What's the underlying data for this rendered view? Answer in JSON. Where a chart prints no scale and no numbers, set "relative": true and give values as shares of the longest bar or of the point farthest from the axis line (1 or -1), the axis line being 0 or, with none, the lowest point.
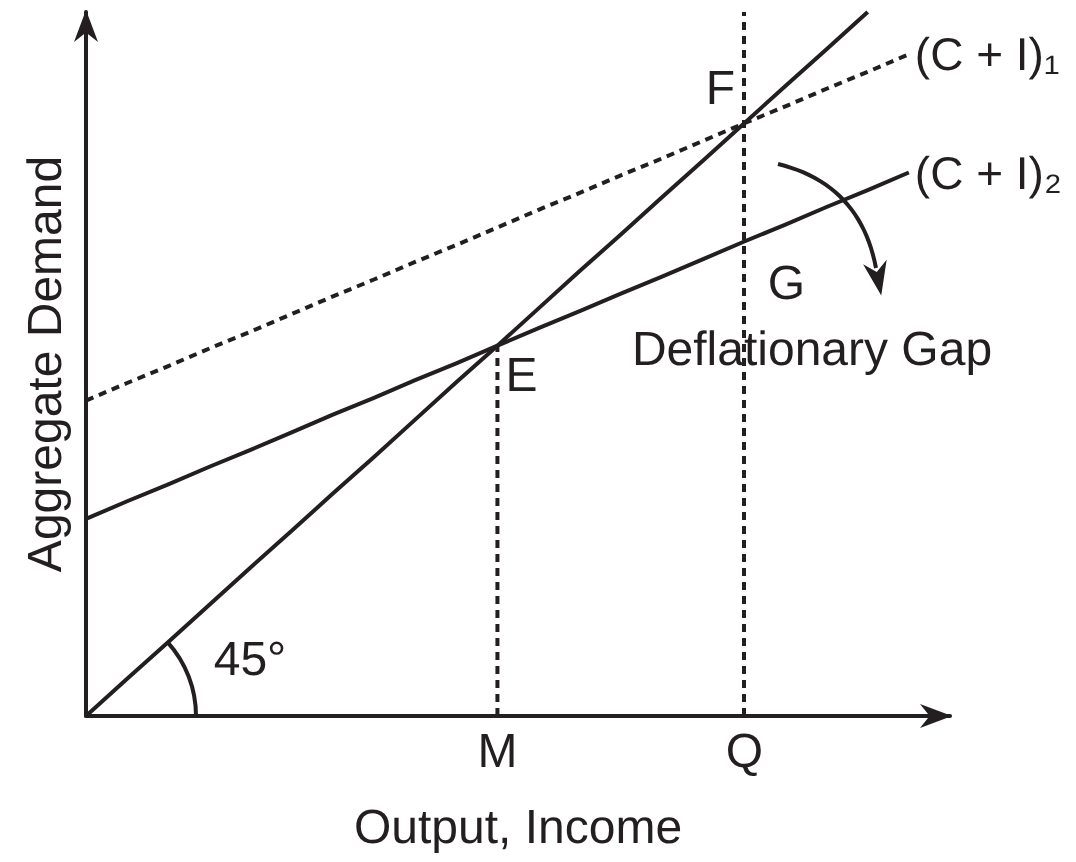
{
  "chart_data": {
    "type": "line",
    "xlabel": "Output, Income",
    "ylabel": "Aggregate Demand",
    "relative": true,
    "tick_labels": "x",
    "marker": "none",
    "categories": [
      null,
      null,
      null,
      null,
      null,
      null,
      null,
      null,
      null,
      null,
      "M",
      null,
      null,
      null,
      null,
      null,
      "Q",
      null,
      null,
      null,
      null,
      null
    ],
    "series": [
      {
        "color": "#231f20",
        "values": [
          0,
          0.053,
          0.105,
          0.158,
          0.211,
          0.263,
          0.316,
          0.368,
          0.421,
          0.474,
          0.526,
          0.579,
          0.632,
          0.684,
          0.737,
          0.789,
          0.842,
          0.895,
          0.947,
          1,
          null,
          null
        ]
      },
      {
        "name": "(C + I)₁",
        "color": "#231f20",
        "line_style": "dashed",
        "values": [
          0.448,
          0.473,
          0.497,
          0.522,
          0.546,
          0.571,
          0.596,
          0.62,
          0.645,
          0.669,
          0.694,
          0.719,
          0.743,
          0.768,
          0.792,
          0.817,
          0.842,
          0.866,
          0.891,
          0.915,
          0.94,
          null
        ]
      },
      {
        "name": "(C + I)₂",
        "color": "#231f20",
        "values": [
          0.28,
          0.305,
          0.329,
          0.354,
          0.378,
          0.403,
          0.428,
          0.452,
          0.477,
          0.501,
          0.526,
          0.551,
          0.575,
          0.6,
          0.624,
          0.649,
          0.674,
          0.698,
          0.723,
          0.747,
          0.772,
          null
        ]
      },
      {
        "color": "#231f20",
        "line_style": "dashed",
        "x": [
          "M",
          "M"
        ],
        "values": [
          0,
          0.526
        ]
      }
    ],
    "ref_lines": [
      {
        "axis": "x",
        "value": "Q",
        "color": "#231f20",
        "line_style": "dashed"
      }
    ],
    "annotations": [
      {
        "text": "E",
        "x": "M",
        "y": 0.526
      },
      {
        "text": "F",
        "x": "Q",
        "y": 0.842
      },
      {
        "text": "G",
        "x": "Q",
        "y": 0.674
      },
      "45°",
      "Deflationary Gap"
    ]
  }
}
